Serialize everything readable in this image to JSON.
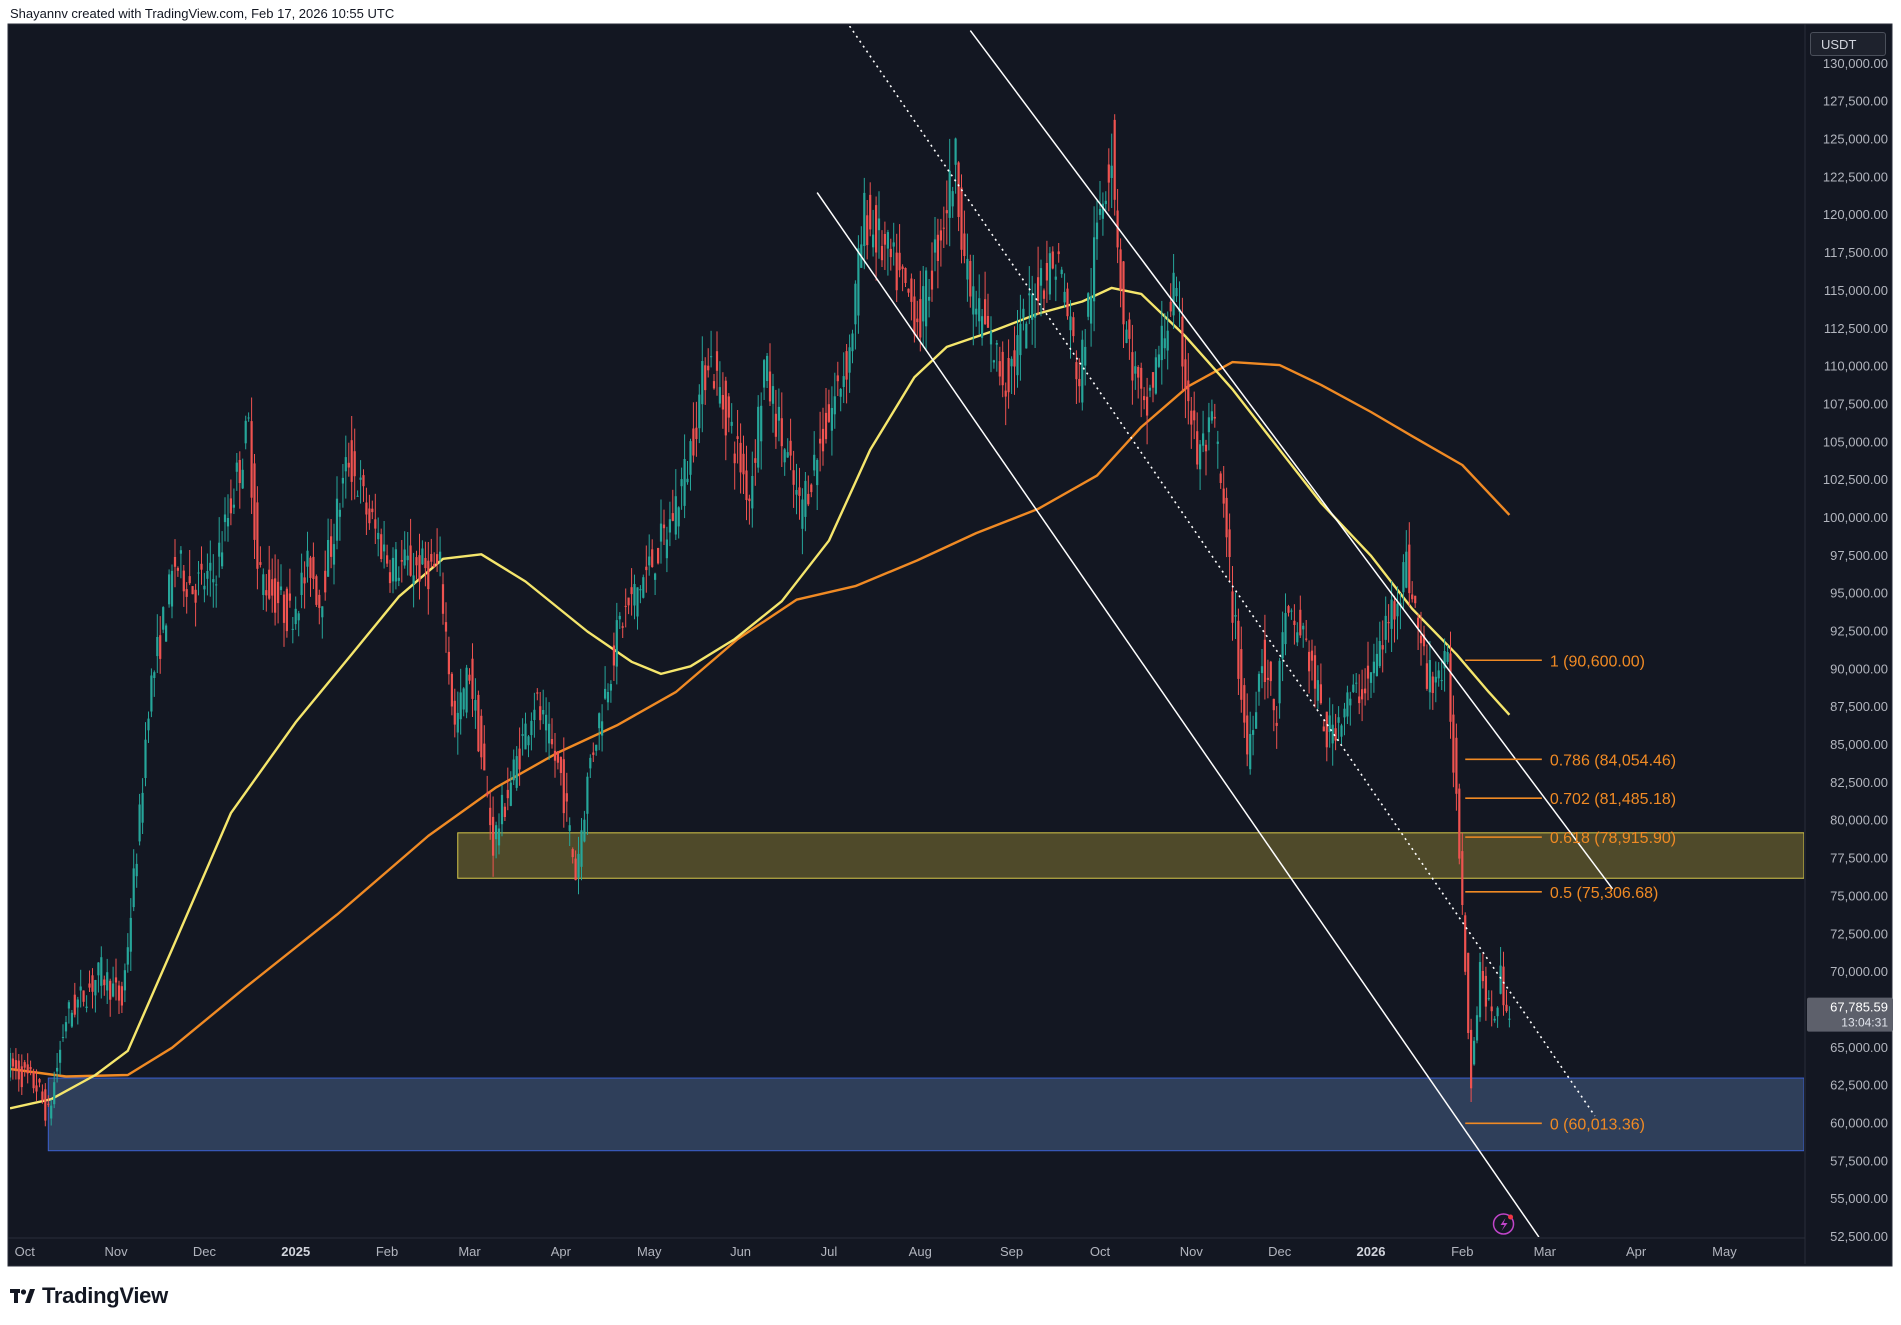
{
  "header": {
    "attribution": "Shayannv created with TradingView.com, Feb 17, 2026 10:55 UTC"
  },
  "brand": {
    "name": "TradingView"
  },
  "price_axis": {
    "currency": "USDT",
    "last_price": "67,785.59",
    "countdown": "13:04:31"
  },
  "colors": {
    "background": "#131722",
    "bull": "#26a69a",
    "bear": "#ef5350",
    "ma_fast": "#f5e66c",
    "ma_slow": "#f08a24",
    "fib": "#f08a24",
    "zone_yellow": "#4f4a2a",
    "zone_blue": "#2f3f5a",
    "trendline": "#ffffff"
  },
  "chart_data": {
    "type": "candlestick",
    "symbol_quote": "USDT",
    "ylim": [
      52500,
      132500
    ],
    "xlim": [
      "2024-09-26",
      "2026-05-28"
    ],
    "y_ticks": [
      "52,500.00",
      "55,000.00",
      "57,500.00",
      "60,000.00",
      "62,500.00",
      "65,000.00",
      "67,500.00",
      "70,000.00",
      "72,500.00",
      "75,000.00",
      "77,500.00",
      "80,000.00",
      "82,500.00",
      "85,000.00",
      "87,500.00",
      "90,000.00",
      "92,500.00",
      "95,000.00",
      "97,500.00",
      "100,000.00",
      "102,500.00",
      "105,000.00",
      "107,500.00",
      "110,000.00",
      "112,500.00",
      "115,000.00",
      "117,500.00",
      "120,000.00",
      "122,500.00",
      "125,000.00",
      "127,500.00",
      "130,000.00"
    ],
    "x_ticks": [
      {
        "label": "Oct",
        "date": "2024-10-01"
      },
      {
        "label": "Nov",
        "date": "2024-11-01"
      },
      {
        "label": "Dec",
        "date": "2024-12-01"
      },
      {
        "label": "2025",
        "date": "2025-01-01",
        "year": true
      },
      {
        "label": "Feb",
        "date": "2025-02-01"
      },
      {
        "label": "Mar",
        "date": "2025-03-01"
      },
      {
        "label": "Apr",
        "date": "2025-04-01"
      },
      {
        "label": "May",
        "date": "2025-05-01"
      },
      {
        "label": "Jun",
        "date": "2025-06-01"
      },
      {
        "label": "Jul",
        "date": "2025-07-01"
      },
      {
        "label": "Aug",
        "date": "2025-08-01"
      },
      {
        "label": "Sep",
        "date": "2025-09-01"
      },
      {
        "label": "Oct",
        "date": "2025-10-01"
      },
      {
        "label": "Nov",
        "date": "2025-11-01"
      },
      {
        "label": "Dec",
        "date": "2025-12-01"
      },
      {
        "label": "2026",
        "date": "2026-01-01",
        "year": true
      },
      {
        "label": "Feb",
        "date": "2026-02-01"
      },
      {
        "label": "Mar",
        "date": "2026-03-01"
      },
      {
        "label": "Apr",
        "date": "2026-04-01"
      },
      {
        "label": "May",
        "date": "2026-05-01"
      }
    ],
    "price_path": [
      [
        "2024-09-26",
        64000
      ],
      [
        "2024-10-06",
        62500
      ],
      [
        "2024-10-10",
        60500
      ],
      [
        "2024-10-16",
        67000
      ],
      [
        "2024-10-28",
        70000
      ],
      [
        "2024-11-04",
        68000
      ],
      [
        "2024-11-10",
        80000
      ],
      [
        "2024-11-13",
        88000
      ],
      [
        "2024-11-22",
        97000
      ],
      [
        "2024-11-28",
        95500
      ],
      [
        "2024-12-05",
        96000
      ],
      [
        "2024-12-17",
        106000
      ],
      [
        "2024-12-20",
        96500
      ],
      [
        "2024-12-31",
        93500
      ],
      [
        "2025-01-07",
        97000
      ],
      [
        "2025-01-10",
        94500
      ],
      [
        "2025-01-20",
        104000
      ],
      [
        "2025-01-27",
        100000
      ],
      [
        "2025-02-03",
        97000
      ],
      [
        "2025-02-20",
        96500
      ],
      [
        "2025-02-25",
        86000
      ],
      [
        "2025-03-02",
        90000
      ],
      [
        "2025-03-10",
        78500
      ],
      [
        "2025-03-24",
        88000
      ],
      [
        "2025-04-02",
        83000
      ],
      [
        "2025-04-07",
        76500
      ],
      [
        "2025-04-12",
        84000
      ],
      [
        "2025-04-22",
        93000
      ],
      [
        "2025-05-08",
        99000
      ],
      [
        "2025-05-15",
        103500
      ],
      [
        "2025-05-22",
        111000
      ],
      [
        "2025-06-05",
        101500
      ],
      [
        "2025-06-10",
        110000
      ],
      [
        "2025-06-22",
        100500
      ],
      [
        "2025-07-01",
        106000
      ],
      [
        "2025-07-09",
        111000
      ],
      [
        "2025-07-14",
        120000
      ],
      [
        "2025-07-24",
        116500
      ],
      [
        "2025-08-02",
        113000
      ],
      [
        "2025-08-14",
        123500
      ],
      [
        "2025-08-18",
        115500
      ],
      [
        "2025-08-31",
        109000
      ],
      [
        "2025-09-12",
        116000
      ],
      [
        "2025-09-18",
        117000
      ],
      [
        "2025-09-25",
        109000
      ],
      [
        "2025-10-02",
        120500
      ],
      [
        "2025-10-06",
        124500
      ],
      [
        "2025-10-10",
        113000
      ],
      [
        "2025-10-17",
        106500
      ],
      [
        "2025-10-27",
        115000
      ],
      [
        "2025-11-04",
        104000
      ],
      [
        "2025-11-10",
        106000
      ],
      [
        "2025-11-21",
        84500
      ],
      [
        "2025-11-26",
        91000
      ],
      [
        "2025-12-01",
        86500
      ],
      [
        "2025-12-03",
        93000
      ],
      [
        "2025-12-10",
        92500
      ],
      [
        "2025-12-18",
        85500
      ],
      [
        "2025-12-24",
        87500
      ],
      [
        "2026-01-02",
        89500
      ],
      [
        "2026-01-14",
        97000
      ],
      [
        "2026-01-21",
        89500
      ],
      [
        "2026-01-28",
        90000
      ],
      [
        "2026-02-01",
        78500
      ],
      [
        "2026-02-05",
        63000
      ],
      [
        "2026-02-08",
        70500
      ],
      [
        "2026-02-12",
        66500
      ],
      [
        "2026-02-15",
        69500
      ],
      [
        "2026-02-17",
        67785.59
      ]
    ],
    "ma_fast_path": [
      [
        "2024-09-26",
        61000
      ],
      [
        "2024-10-10",
        61600
      ],
      [
        "2024-10-25",
        63200
      ],
      [
        "2024-11-05",
        64800
      ],
      [
        "2024-11-20",
        71500
      ],
      [
        "2024-12-10",
        80500
      ],
      [
        "2025-01-01",
        86500
      ],
      [
        "2025-01-20",
        91000
      ],
      [
        "2025-02-05",
        94800
      ],
      [
        "2025-02-20",
        97300
      ],
      [
        "2025-03-05",
        97600
      ],
      [
        "2025-03-20",
        95800
      ],
      [
        "2025-04-10",
        92500
      ],
      [
        "2025-04-25",
        90500
      ],
      [
        "2025-05-05",
        89700
      ],
      [
        "2025-05-15",
        90200
      ],
      [
        "2025-05-30",
        92000
      ],
      [
        "2025-06-15",
        94500
      ],
      [
        "2025-07-01",
        98500
      ],
      [
        "2025-07-15",
        104500
      ],
      [
        "2025-07-30",
        109300
      ],
      [
        "2025-08-10",
        111300
      ],
      [
        "2025-08-25",
        112300
      ],
      [
        "2025-09-10",
        113500
      ],
      [
        "2025-09-25",
        114300
      ],
      [
        "2025-10-05",
        115200
      ],
      [
        "2025-10-15",
        114800
      ],
      [
        "2025-10-30",
        112000
      ],
      [
        "2025-11-15",
        108500
      ],
      [
        "2025-12-01",
        104500
      ],
      [
        "2025-12-15",
        101000
      ],
      [
        "2026-01-01",
        97500
      ],
      [
        "2026-01-15",
        94000
      ],
      [
        "2026-01-30",
        91000
      ],
      [
        "2026-02-10",
        88500
      ],
      [
        "2026-02-17",
        87000
      ]
    ],
    "ma_slow_path": [
      [
        "2024-09-26",
        63600
      ],
      [
        "2024-10-15",
        63100
      ],
      [
        "2024-11-05",
        63200
      ],
      [
        "2024-11-20",
        65000
      ],
      [
        "2024-12-15",
        69000
      ],
      [
        "2025-01-15",
        73800
      ],
      [
        "2025-02-15",
        79000
      ],
      [
        "2025-03-10",
        82200
      ],
      [
        "2025-03-31",
        84500
      ],
      [
        "2025-04-20",
        86300
      ],
      [
        "2025-05-10",
        88500
      ],
      [
        "2025-05-31",
        92000
      ],
      [
        "2025-06-20",
        94600
      ],
      [
        "2025-07-10",
        95500
      ],
      [
        "2025-07-31",
        97200
      ],
      [
        "2025-08-20",
        99000
      ],
      [
        "2025-09-10",
        100600
      ],
      [
        "2025-09-30",
        102800
      ],
      [
        "2025-10-15",
        106000
      ],
      [
        "2025-10-31",
        108700
      ],
      [
        "2025-11-15",
        110300
      ],
      [
        "2025-12-01",
        110100
      ],
      [
        "2025-12-15",
        108800
      ],
      [
        "2026-01-01",
        107000
      ],
      [
        "2026-01-15",
        105400
      ],
      [
        "2026-02-01",
        103500
      ],
      [
        "2026-02-17",
        100200
      ]
    ],
    "zones": [
      {
        "name": "yellow-zone",
        "from": "2025-02-25",
        "to": "2026-05-28",
        "low": 76200,
        "high": 79200
      },
      {
        "name": "blue-zone",
        "from": "2024-10-09",
        "to": "2026-05-28",
        "low": 58200,
        "high": 63000
      }
    ],
    "trendlines": [
      {
        "name": "upper-channel",
        "from": [
          "2025-08-18",
          132200
        ],
        "to": [
          "2026-03-24",
          75500
        ]
      },
      {
        "name": "lower-channel",
        "from": [
          "2025-06-27",
          121500
        ],
        "to": [
          "2026-02-27",
          52500
        ]
      },
      {
        "name": "mid-channel-dotted",
        "from": [
          "2025-07-08",
          132500
        ],
        "to": [
          "2026-03-18",
          60500
        ],
        "dashed": true
      }
    ],
    "fibonacci": {
      "from_date": "2026-02-02",
      "to_date": "2026-02-28",
      "levels": [
        {
          "label": "1 (90,600.00)",
          "price": 90600
        },
        {
          "label": "0.786 (84,054.46)",
          "price": 84054.46
        },
        {
          "label": "0.702 (81,485.18)",
          "price": 81485.18
        },
        {
          "label": "0.618 (78,915.90)",
          "price": 78915.9
        },
        {
          "label": "0.5 (75,306.68)",
          "price": 75306.68
        },
        {
          "label": "0 (60,013.36)",
          "price": 60013.36
        }
      ]
    }
  }
}
